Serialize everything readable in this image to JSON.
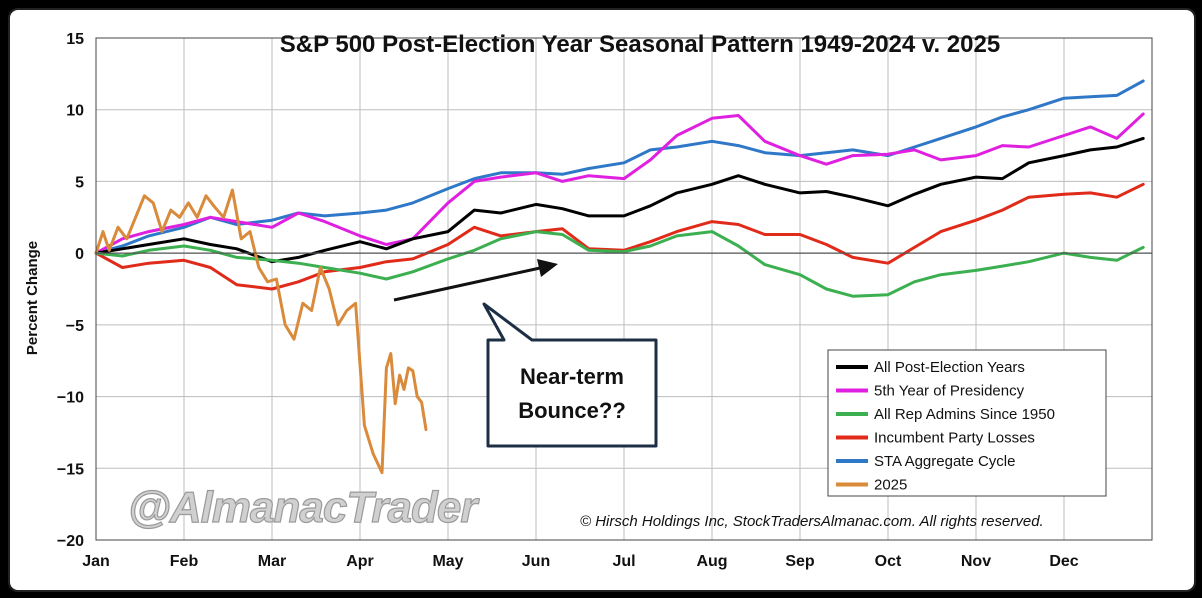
{
  "chart_data": {
    "type": "line",
    "title": "S&P 500 Post-Election Year Seasonal Pattern 1949-2024 v. 2025",
    "ylabel": "Percent Change",
    "xlabel": "",
    "ylim": [
      -20,
      15
    ],
    "yticks": [
      15,
      10,
      5,
      0,
      -5,
      -10,
      -15,
      -20
    ],
    "ytick_labels": [
      "15",
      "10",
      "5",
      "0",
      "−5",
      "−10",
      "−15",
      "−20"
    ],
    "months": [
      "Jan",
      "Feb",
      "Mar",
      "Apr",
      "May",
      "Jun",
      "Jul",
      "Aug",
      "Sep",
      "Oct",
      "Nov",
      "Dec"
    ],
    "xlim": [
      0,
      12
    ],
    "grid": true,
    "legend_position": "bottom-right",
    "series": [
      {
        "name": "All Post-Election Years",
        "color": "#000000",
        "x": [
          0,
          0.3,
          0.6,
          1.0,
          1.3,
          1.6,
          2.0,
          2.3,
          2.6,
          3.0,
          3.3,
          3.6,
          4.0,
          4.3,
          4.6,
          5.0,
          5.3,
          5.6,
          6.0,
          6.3,
          6.6,
          7.0,
          7.3,
          7.6,
          8.0,
          8.3,
          8.6,
          9.0,
          9.3,
          9.6,
          10.0,
          10.3,
          10.6,
          11.0,
          11.3,
          11.6,
          11.9
        ],
        "values": [
          0,
          0.3,
          0.6,
          1.0,
          0.6,
          0.3,
          -0.6,
          -0.3,
          0.2,
          0.8,
          0.3,
          1.0,
          1.5,
          3.0,
          2.8,
          3.4,
          3.1,
          2.6,
          2.6,
          3.3,
          4.2,
          4.8,
          5.4,
          4.8,
          4.2,
          4.3,
          3.9,
          3.3,
          4.1,
          4.8,
          5.3,
          5.2,
          6.3,
          6.8,
          7.2,
          7.4,
          8.0
        ]
      },
      {
        "name": "5th Year of Presidency",
        "color": "#e020e0",
        "x": [
          0,
          0.3,
          0.6,
          1.0,
          1.3,
          1.6,
          2.0,
          2.3,
          2.6,
          3.0,
          3.3,
          3.6,
          4.0,
          4.3,
          4.6,
          5.0,
          5.3,
          5.6,
          6.0,
          6.3,
          6.6,
          7.0,
          7.3,
          7.6,
          8.0,
          8.3,
          8.6,
          9.0,
          9.3,
          9.6,
          10.0,
          10.3,
          10.6,
          11.0,
          11.3,
          11.6,
          11.9
        ],
        "values": [
          0,
          1.0,
          1.5,
          2.0,
          2.5,
          2.2,
          1.8,
          2.8,
          2.2,
          1.2,
          0.6,
          1.0,
          3.5,
          5.0,
          5.3,
          5.6,
          5.0,
          5.4,
          5.2,
          6.5,
          8.2,
          9.4,
          9.6,
          7.8,
          6.8,
          6.2,
          6.8,
          6.9,
          7.2,
          6.5,
          6.8,
          7.5,
          7.4,
          8.2,
          8.8,
          8.0,
          9.7
        ]
      },
      {
        "name": "All Rep Admins Since 1950",
        "color": "#3cb050",
        "x": [
          0,
          0.3,
          0.6,
          1.0,
          1.3,
          1.6,
          2.0,
          2.3,
          2.6,
          3.0,
          3.3,
          3.6,
          4.0,
          4.3,
          4.6,
          5.0,
          5.3,
          5.6,
          6.0,
          6.3,
          6.6,
          7.0,
          7.3,
          7.6,
          8.0,
          8.3,
          8.6,
          9.0,
          9.3,
          9.6,
          10.0,
          10.3,
          10.6,
          11.0,
          11.3,
          11.6,
          11.9
        ],
        "values": [
          0,
          -0.2,
          0.2,
          0.5,
          0.2,
          -0.3,
          -0.5,
          -0.7,
          -1.0,
          -1.4,
          -1.8,
          -1.3,
          -0.4,
          0.2,
          1.0,
          1.5,
          1.3,
          0.2,
          0.1,
          0.5,
          1.2,
          1.5,
          0.5,
          -0.8,
          -1.5,
          -2.5,
          -3.0,
          -2.9,
          -2.0,
          -1.5,
          -1.2,
          -0.9,
          -0.6,
          0.0,
          -0.3,
          -0.5,
          0.4
        ]
      },
      {
        "name": "Incumbent Party Losses",
        "color": "#e02a1a",
        "x": [
          0,
          0.3,
          0.6,
          1.0,
          1.3,
          1.6,
          2.0,
          2.3,
          2.6,
          3.0,
          3.3,
          3.6,
          4.0,
          4.3,
          4.6,
          5.0,
          5.3,
          5.6,
          6.0,
          6.3,
          6.6,
          7.0,
          7.3,
          7.6,
          8.0,
          8.3,
          8.6,
          9.0,
          9.3,
          9.6,
          10.0,
          10.3,
          10.6,
          11.0,
          11.3,
          11.6,
          11.9
        ],
        "values": [
          0,
          -1.0,
          -0.7,
          -0.5,
          -1.0,
          -2.2,
          -2.5,
          -2.0,
          -1.3,
          -1.0,
          -0.6,
          -0.4,
          0.6,
          1.8,
          1.2,
          1.5,
          1.7,
          0.3,
          0.2,
          0.8,
          1.5,
          2.2,
          2.0,
          1.3,
          1.3,
          0.6,
          -0.3,
          -0.7,
          0.4,
          1.5,
          2.3,
          3.0,
          3.9,
          4.1,
          4.2,
          3.9,
          4.8
        ]
      },
      {
        "name": "STA Aggregate Cycle",
        "color": "#2f78c8",
        "x": [
          0,
          0.3,
          0.6,
          1.0,
          1.3,
          1.6,
          2.0,
          2.3,
          2.6,
          3.0,
          3.3,
          3.6,
          4.0,
          4.3,
          4.6,
          5.0,
          5.3,
          5.6,
          6.0,
          6.3,
          6.6,
          7.0,
          7.3,
          7.6,
          8.0,
          8.3,
          8.6,
          9.0,
          9.3,
          9.6,
          10.0,
          10.3,
          10.6,
          11.0,
          11.3,
          11.6,
          11.9
        ],
        "values": [
          0,
          0.5,
          1.2,
          1.8,
          2.5,
          2.0,
          2.3,
          2.8,
          2.6,
          2.8,
          3.0,
          3.5,
          4.5,
          5.2,
          5.6,
          5.6,
          5.5,
          5.9,
          6.3,
          7.2,
          7.4,
          7.8,
          7.5,
          7.0,
          6.8,
          7.0,
          7.2,
          6.8,
          7.4,
          8.0,
          8.8,
          9.5,
          10.0,
          10.8,
          10.9,
          11.0,
          12.0
        ]
      },
      {
        "name": "2025",
        "color": "#d98a3a",
        "x": [
          0,
          0.08,
          0.15,
          0.25,
          0.35,
          0.45,
          0.55,
          0.65,
          0.75,
          0.85,
          0.95,
          1.05,
          1.15,
          1.25,
          1.35,
          1.45,
          1.55,
          1.65,
          1.75,
          1.85,
          1.95,
          2.05,
          2.15,
          2.25,
          2.35,
          2.45,
          2.55,
          2.65,
          2.75,
          2.85,
          2.95,
          3.05,
          3.15,
          3.25,
          3.3,
          3.35,
          3.4,
          3.45,
          3.5,
          3.55,
          3.6,
          3.65,
          3.7,
          3.75
        ],
        "values": [
          0,
          1.5,
          0.2,
          1.8,
          1.0,
          2.5,
          4.0,
          3.5,
          1.5,
          3.0,
          2.5,
          3.5,
          2.5,
          4.0,
          3.2,
          2.5,
          4.4,
          1.0,
          1.5,
          -1.0,
          -2.0,
          -1.8,
          -5.0,
          -6.0,
          -3.5,
          -4.0,
          -1.0,
          -2.5,
          -5.0,
          -4.0,
          -3.5,
          -12.0,
          -14.0,
          -15.3,
          -8.0,
          -7.0,
          -10.5,
          -8.5,
          -9.5,
          -8.0,
          -8.2,
          -10.0,
          -10.4,
          -12.3
        ]
      }
    ],
    "annotations": {
      "callout": [
        "Near-term",
        "Bounce??"
      ],
      "watermark": "@AlmanacTrader",
      "copyright": "© Hirsch Holdings Inc, StockTradersAlmanac.com. All rights reserved."
    }
  }
}
